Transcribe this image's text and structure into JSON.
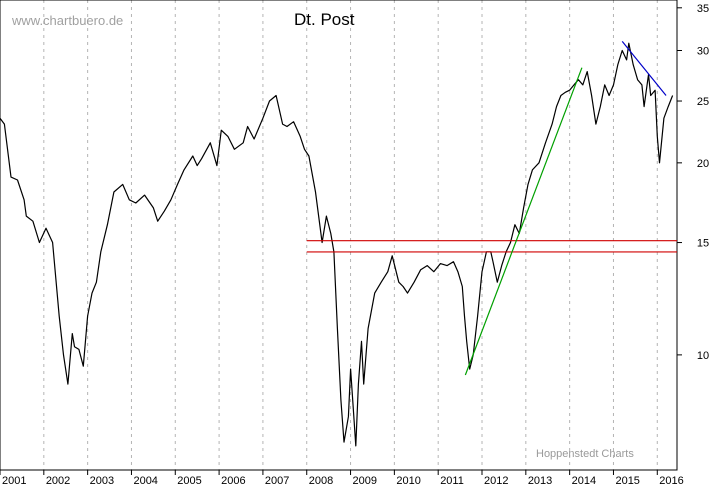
{
  "chart_data": {
    "type": "line",
    "title": "Dt. Post",
    "watermark": "www.chartbuero.de",
    "credit": "Hoppenstedt Charts",
    "xlabel": "",
    "ylabel": "",
    "y_scale": "log",
    "ylim": [
      6.6,
      36
    ],
    "xlim": [
      2001.0,
      2016.45
    ],
    "y_ticks": [
      10,
      15,
      20,
      25,
      30,
      35
    ],
    "x_tick_labels": [
      "2001",
      "2002",
      "2003",
      "2004",
      "2005",
      "2006",
      "2007",
      "2008",
      "2009",
      "2010",
      "2011",
      "2012",
      "2013",
      "2014",
      "2015",
      "2016"
    ],
    "grid": {
      "vertical": true,
      "horizontal": false
    },
    "colors": {
      "price": "#000000",
      "support": "#d00000",
      "uptrend": "#00a000",
      "downtrend": "#0000c8",
      "grid": "#b4b4b4"
    },
    "series": [
      {
        "x": [
          2001.0,
          2001.1,
          2001.25,
          2001.4,
          2001.55,
          2001.6,
          2001.75,
          2001.9,
          2002.05,
          2002.2,
          2002.35,
          2002.45,
          2002.55,
          2002.65,
          2002.7,
          2002.8,
          2002.9,
          2003.0,
          2003.1,
          2003.2,
          2003.3,
          2003.45,
          2003.6,
          2003.8,
          2003.95,
          2004.1,
          2004.3,
          2004.5,
          2004.6,
          2004.75,
          2004.9,
          2005.05,
          2005.2,
          2005.4,
          2005.5,
          2005.6,
          2005.8,
          2005.95,
          2006.05,
          2006.2,
          2006.35,
          2006.55,
          2006.65,
          2006.8,
          2007.0,
          2007.15,
          2007.3,
          2007.45,
          2007.55,
          2007.7,
          2007.85,
          2007.95,
          2008.05,
          2008.2,
          2008.35,
          2008.45,
          2008.55,
          2008.62,
          2008.7,
          2008.78,
          2008.85,
          2008.95,
          2009.0,
          2009.05,
          2009.12,
          2009.18,
          2009.25,
          2009.3,
          2009.4,
          2009.55,
          2009.7,
          2009.85,
          2009.95,
          2010.1,
          2010.2,
          2010.3,
          2010.45,
          2010.6,
          2010.75,
          2010.9,
          2011.05,
          2011.2,
          2011.35,
          2011.45,
          2011.55,
          2011.6,
          2011.65,
          2011.72,
          2011.8,
          2011.9,
          2012.0,
          2012.1,
          2012.2,
          2012.25,
          2012.35,
          2012.45,
          2012.55,
          2012.65,
          2012.75,
          2012.85,
          2012.95,
          2013.05,
          2013.15,
          2013.3,
          2013.45,
          2013.6,
          2013.7,
          2013.8,
          2013.9,
          2014.0,
          2014.1,
          2014.2,
          2014.3,
          2014.4,
          2014.5,
          2014.6,
          2014.7,
          2014.8,
          2014.9,
          2015.0,
          2015.1,
          2015.2,
          2015.3,
          2015.35,
          2015.45,
          2015.55,
          2015.65,
          2015.7,
          2015.8,
          2015.85,
          2015.95,
          2016.0,
          2016.05,
          2016.15,
          2016.25,
          2016.35
        ],
        "y": [
          23.5,
          23.0,
          19.0,
          18.8,
          17.5,
          16.5,
          16.2,
          15.0,
          15.8,
          15.0,
          11.5,
          10.0,
          9.0,
          10.8,
          10.3,
          10.2,
          9.6,
          11.5,
          12.5,
          13.0,
          14.5,
          16.0,
          18.0,
          18.5,
          17.5,
          17.3,
          17.8,
          17.0,
          16.2,
          16.8,
          17.5,
          18.5,
          19.5,
          20.5,
          19.8,
          20.3,
          21.5,
          19.8,
          22.5,
          22.0,
          21.0,
          21.5,
          22.8,
          21.8,
          23.5,
          25.0,
          25.5,
          23.0,
          22.8,
          23.2,
          22.0,
          21.0,
          20.5,
          18.0,
          15.0,
          16.5,
          15.5,
          14.5,
          11.0,
          8.5,
          7.3,
          8.0,
          9.5,
          8.5,
          7.2,
          9.0,
          10.5,
          9.0,
          11.0,
          12.5,
          13.0,
          13.5,
          14.3,
          13.0,
          12.8,
          12.5,
          13.0,
          13.6,
          13.8,
          13.5,
          13.9,
          13.8,
          14.0,
          13.5,
          12.8,
          11.5,
          10.5,
          9.5,
          10.0,
          11.5,
          13.5,
          14.5,
          14.5,
          14.0,
          13.0,
          13.8,
          14.5,
          15.0,
          16.0,
          15.5,
          17.0,
          18.5,
          19.5,
          20.0,
          21.5,
          23.0,
          24.5,
          25.5,
          25.8,
          26.0,
          26.5,
          27.0,
          26.5,
          27.8,
          25.5,
          23.0,
          24.5,
          26.5,
          25.5,
          26.5,
          28.5,
          30.0,
          29.0,
          30.8,
          28.5,
          27.0,
          26.5,
          24.5,
          27.5,
          25.5,
          26.0,
          22.0,
          20.0,
          23.5,
          24.5,
          25.5
        ]
      }
    ],
    "lines": [
      {
        "name": "support-upper",
        "x": [
          2008.0,
          2016.45
        ],
        "y": [
          15.1,
          15.1
        ]
      },
      {
        "name": "support-lower",
        "x": [
          2008.0,
          2016.45
        ],
        "y": [
          14.5,
          14.5
        ]
      },
      {
        "name": "uptrend",
        "x": [
          2011.62,
          2014.28
        ],
        "y": [
          9.3,
          28.2
        ]
      },
      {
        "name": "downtrend",
        "x": [
          2015.2,
          2016.2
        ],
        "y": [
          31.0,
          25.5
        ]
      }
    ]
  }
}
